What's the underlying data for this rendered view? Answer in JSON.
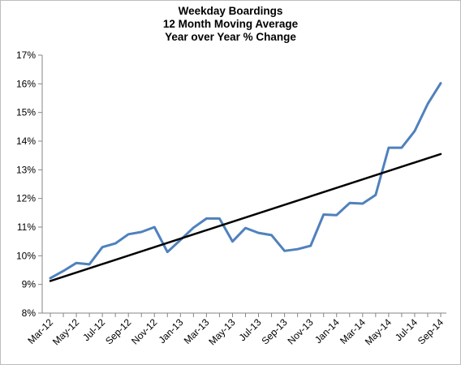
{
  "chart_data": {
    "type": "line",
    "title_lines": [
      "Weekday Boardings",
      "12 Month Moving Average",
      "Year over Year % Change"
    ],
    "xlabel": "",
    "ylabel": "",
    "x_tick_labels": [
      "Mar-12",
      "May-12",
      "Jul-12",
      "Sep-12",
      "Nov-12",
      "Jan-13",
      "Mar-13",
      "May-13",
      "Jul-13",
      "Sep-13",
      "Nov-13",
      "Jan-14",
      "Mar-14",
      "May-14",
      "Jul-14",
      "Sep-14"
    ],
    "y_tick_labels": [
      "8%",
      "9%",
      "10%",
      "11%",
      "12%",
      "13%",
      "14%",
      "15%",
      "16%",
      "17%"
    ],
    "ylim": [
      8,
      17
    ],
    "grid": false,
    "categories": [
      "Mar-12",
      "Apr-12",
      "May-12",
      "Jun-12",
      "Jul-12",
      "Aug-12",
      "Sep-12",
      "Oct-12",
      "Nov-12",
      "Dec-12",
      "Jan-13",
      "Feb-13",
      "Mar-13",
      "Apr-13",
      "May-13",
      "Jun-13",
      "Jul-13",
      "Aug-13",
      "Sep-13",
      "Oct-13",
      "Nov-13",
      "Dec-13",
      "Jan-14",
      "Feb-14",
      "Mar-14",
      "Apr-14",
      "May-14",
      "Jun-14",
      "Jul-14",
      "Aug-14",
      "Sep-14"
    ],
    "series": [
      {
        "values": [
          9.22,
          9.47,
          9.75,
          9.7,
          10.3,
          10.43,
          10.75,
          10.83,
          11.0,
          10.13,
          10.55,
          10.98,
          11.3,
          11.3,
          10.5,
          10.97,
          10.8,
          10.72,
          10.17,
          10.23,
          10.35,
          11.44,
          11.42,
          11.84,
          11.82,
          12.12,
          13.77,
          13.77,
          14.35,
          15.3,
          16.02
        ],
        "color": "#4f81bd"
      },
      {
        "trendline": true,
        "values_endpoints": [
          9.12,
          13.55
        ],
        "color": "#000000"
      }
    ]
  }
}
